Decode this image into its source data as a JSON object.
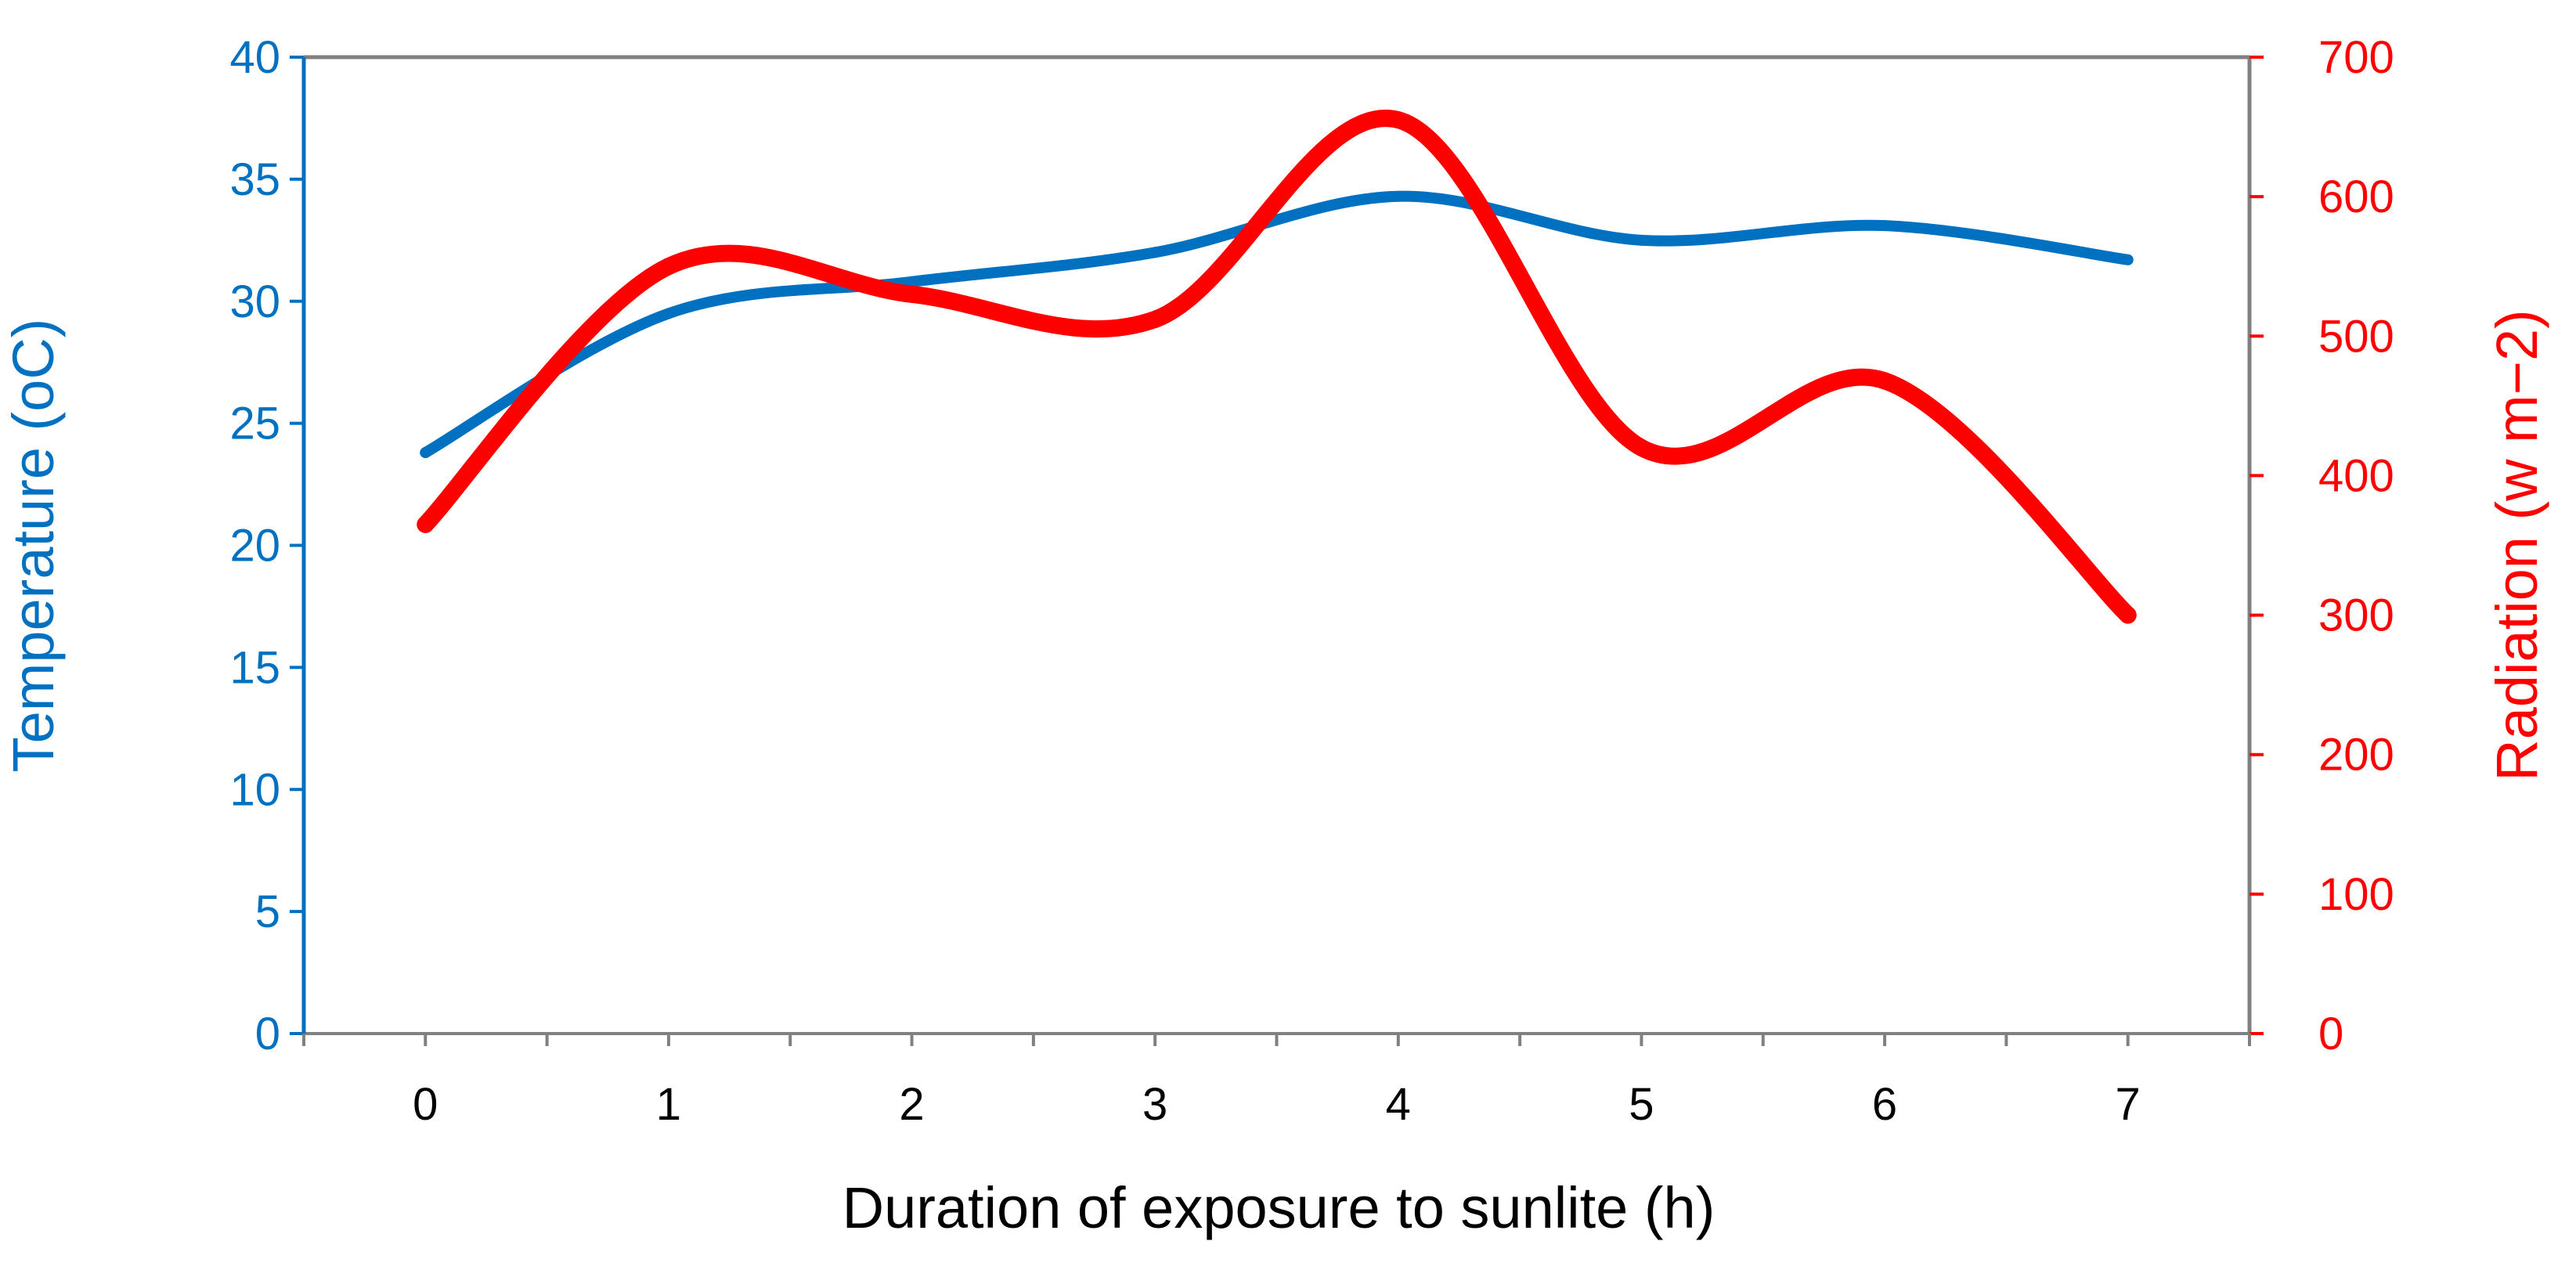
{
  "chart_data": {
    "type": "line",
    "title": "",
    "xlabel": "Duration of exposure to sunlite (h)",
    "ylabel": "Temperature (oC)",
    "ylabel_right": "Radiation (w m−2)",
    "x": [
      0,
      1,
      2,
      3,
      4,
      5,
      6,
      7
    ],
    "xlim": [
      -0.5,
      7.5
    ],
    "x_ticks": [
      "0",
      "1",
      "2",
      "3",
      "4",
      "5",
      "6",
      "7"
    ],
    "ylim_left": [
      0,
      40
    ],
    "ylim_right": [
      0,
      700
    ],
    "y_ticks_left": [
      "0",
      "5",
      "10",
      "15",
      "20",
      "25",
      "30",
      "35",
      "40"
    ],
    "y_ticks_right": [
      "0",
      "100",
      "200",
      "300",
      "400",
      "500",
      "600",
      "700"
    ],
    "grid": false,
    "legend": "none",
    "series": [
      {
        "name": "Temperature",
        "axis": "left",
        "color": "#0070C0",
        "values": [
          23.8,
          29.5,
          30.8,
          32.0,
          34.3,
          32.5,
          33.1,
          31.7
        ]
      },
      {
        "name": "Radiation",
        "axis": "right",
        "color": "#FF0000",
        "values": [
          365,
          550,
          530,
          512,
          655,
          420,
          468,
          300
        ]
      }
    ],
    "colors": {
      "left_axis": "#0070C0",
      "right_axis": "#FF0000",
      "frame": "#808080",
      "x_text": "#000000"
    }
  }
}
